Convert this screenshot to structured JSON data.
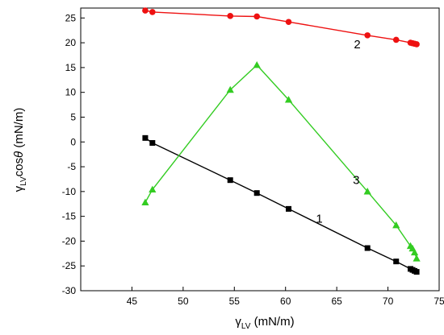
{
  "chart_data": {
    "type": "line",
    "title": "",
    "xlabel": "γLV (mN/m)",
    "ylabel": "γLVcosθ (mN/m)",
    "xlabel_parts": {
      "symbol": "γ",
      "sub": "LV",
      "unit": " (mN/m)"
    },
    "ylabel_parts": {
      "symbol": "γ",
      "sub": "LV",
      "text": "cos",
      "theta": "θ",
      "unit": " (mN/m)"
    },
    "xlim": [
      40,
      75
    ],
    "ylim": [
      -30,
      27
    ],
    "xticks": [
      45,
      50,
      55,
      60,
      65,
      70,
      75
    ],
    "yticks": [
      -30,
      -25,
      -20,
      -15,
      -10,
      -5,
      0,
      5,
      10,
      15,
      20,
      25
    ],
    "grid": false,
    "legend": "none",
    "series": [
      {
        "label": "1",
        "color": "#000000",
        "marker": "square",
        "label_at": {
          "x": 63.3,
          "y": -16.3
        },
        "x": [
          46.3,
          47.0,
          54.6,
          57.2,
          60.3,
          68.0,
          70.8,
          72.2,
          72.4,
          72.6,
          72.8
        ],
        "y": [
          0.8,
          -0.2,
          -7.7,
          -10.3,
          -13.5,
          -21.4,
          -24.1,
          -25.6,
          -25.8,
          -26.0,
          -26.2
        ]
      },
      {
        "label": "2",
        "color": "#ee1111",
        "marker": "circle",
        "label_at": {
          "x": 67.0,
          "y": 18.9
        },
        "x": [
          46.3,
          47.0,
          54.6,
          57.2,
          60.3,
          68.0,
          70.8,
          72.2,
          72.4,
          72.6,
          72.8
        ],
        "y": [
          26.5,
          26.2,
          25.4,
          25.3,
          24.2,
          21.5,
          20.6,
          20.0,
          19.9,
          19.8,
          19.7
        ]
      },
      {
        "label": "3",
        "color": "#33cc22",
        "marker": "triangle",
        "label_at": {
          "x": 66.9,
          "y": -8.5
        },
        "x": [
          46.3,
          47.0,
          54.6,
          57.2,
          60.3,
          68.0,
          70.8,
          72.2,
          72.4,
          72.6,
          72.8
        ],
        "y": [
          -12.2,
          -9.6,
          10.5,
          15.5,
          8.5,
          -10.0,
          -16.8,
          -21.0,
          -21.5,
          -22.3,
          -23.5
        ]
      }
    ]
  }
}
